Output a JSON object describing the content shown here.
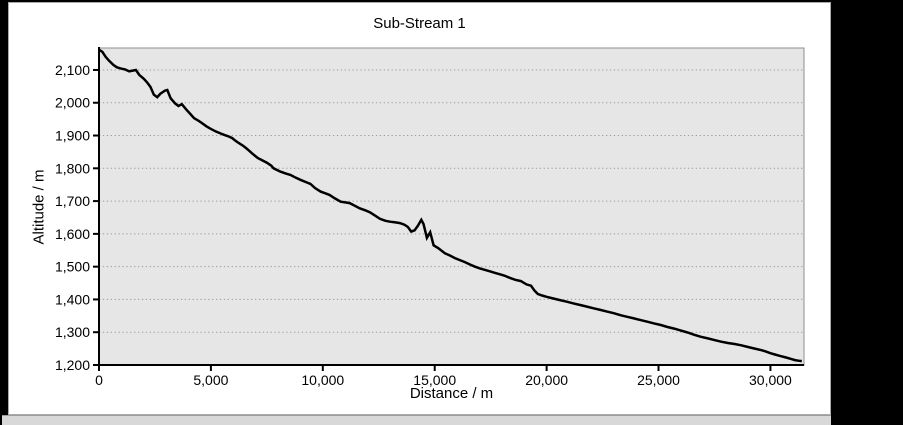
{
  "window": {
    "background_color": "#000000",
    "panel_color": "#ffffff",
    "bottom_strip_color": "#d8d8d8"
  },
  "chart_data": {
    "type": "line",
    "title": "Sub-Stream 1",
    "xlabel": "Distance / m",
    "ylabel": "Altitude / m",
    "xlim": [
      0,
      31500
    ],
    "ylim": [
      1200,
      2167
    ],
    "x_ticks": [
      0,
      5000,
      10000,
      15000,
      20000,
      25000,
      30000
    ],
    "x_tick_labels": [
      "0",
      "5,000",
      "10,000",
      "15,000",
      "20,000",
      "25,000",
      "30,000"
    ],
    "y_ticks": [
      1200,
      1300,
      1400,
      1500,
      1600,
      1700,
      1800,
      1900,
      2000,
      2100
    ],
    "y_tick_labels": [
      "1,200",
      "1,300",
      "1,400",
      "1,500",
      "1,600",
      "1,700",
      "1,800",
      "1,900",
      "2,000",
      "2,100"
    ],
    "grid": "horizontal-dotted",
    "legend": "none",
    "plot_bg_color": "#e6e6e6",
    "grid_color": "#9c9c9c",
    "axis_color": "#000000",
    "border_color": "#8f8f8f",
    "series": [
      {
        "name": "Sub-Stream 1",
        "color": "#000000",
        "points": [
          [
            0,
            2162
          ],
          [
            150,
            2155
          ],
          [
            300,
            2140
          ],
          [
            450,
            2128
          ],
          [
            650,
            2115
          ],
          [
            800,
            2108
          ],
          [
            1000,
            2104
          ],
          [
            1150,
            2102
          ],
          [
            1350,
            2096
          ],
          [
            1500,
            2098
          ],
          [
            1650,
            2100
          ],
          [
            1800,
            2085
          ],
          [
            2000,
            2073
          ],
          [
            2150,
            2062
          ],
          [
            2300,
            2048
          ],
          [
            2450,
            2025
          ],
          [
            2600,
            2017
          ],
          [
            2750,
            2028
          ],
          [
            2950,
            2037
          ],
          [
            3050,
            2039
          ],
          [
            3200,
            2014
          ],
          [
            3400,
            1998
          ],
          [
            3550,
            1990
          ],
          [
            3700,
            1996
          ],
          [
            3900,
            1979
          ],
          [
            4100,
            1964
          ],
          [
            4250,
            1953
          ],
          [
            4450,
            1945
          ],
          [
            4600,
            1938
          ],
          [
            4800,
            1928
          ],
          [
            4950,
            1922
          ],
          [
            5200,
            1913
          ],
          [
            5450,
            1906
          ],
          [
            5600,
            1902
          ],
          [
            5800,
            1897
          ],
          [
            5950,
            1892
          ],
          [
            6100,
            1884
          ],
          [
            6250,
            1877
          ],
          [
            6450,
            1868
          ],
          [
            6600,
            1860
          ],
          [
            6850,
            1845
          ],
          [
            7100,
            1831
          ],
          [
            7300,
            1824
          ],
          [
            7500,
            1817
          ],
          [
            7700,
            1808
          ],
          [
            7800,
            1800
          ],
          [
            8100,
            1790
          ],
          [
            8350,
            1784
          ],
          [
            8550,
            1780
          ],
          [
            8800,
            1771
          ],
          [
            9000,
            1765
          ],
          [
            9250,
            1758
          ],
          [
            9450,
            1752
          ],
          [
            9650,
            1740
          ],
          [
            9900,
            1729
          ],
          [
            10100,
            1724
          ],
          [
            10300,
            1719
          ],
          [
            10550,
            1708
          ],
          [
            10800,
            1698
          ],
          [
            11000,
            1696
          ],
          [
            11200,
            1694
          ],
          [
            11450,
            1685
          ],
          [
            11650,
            1678
          ],
          [
            11900,
            1672
          ],
          [
            12100,
            1666
          ],
          [
            12350,
            1655
          ],
          [
            12550,
            1646
          ],
          [
            12800,
            1640
          ],
          [
            13000,
            1637
          ],
          [
            13250,
            1635
          ],
          [
            13450,
            1633
          ],
          [
            13650,
            1628
          ],
          [
            13800,
            1621
          ],
          [
            13950,
            1607
          ],
          [
            14100,
            1611
          ],
          [
            14250,
            1625
          ],
          [
            14400,
            1643
          ],
          [
            14500,
            1630
          ],
          [
            14650,
            1588
          ],
          [
            14800,
            1605
          ],
          [
            14950,
            1565
          ],
          [
            15150,
            1557
          ],
          [
            15450,
            1541
          ],
          [
            15700,
            1533
          ],
          [
            15900,
            1526
          ],
          [
            16150,
            1519
          ],
          [
            16350,
            1514
          ],
          [
            16600,
            1506
          ],
          [
            16800,
            1500
          ],
          [
            17000,
            1495
          ],
          [
            17250,
            1490
          ],
          [
            17500,
            1485
          ],
          [
            17700,
            1481
          ],
          [
            17900,
            1477
          ],
          [
            18100,
            1473
          ],
          [
            18350,
            1466
          ],
          [
            18600,
            1460
          ],
          [
            18850,
            1456
          ],
          [
            19100,
            1446
          ],
          [
            19300,
            1442
          ],
          [
            19450,
            1428
          ],
          [
            19600,
            1417
          ],
          [
            19800,
            1412
          ],
          [
            20000,
            1408
          ],
          [
            20300,
            1403
          ],
          [
            20600,
            1398
          ],
          [
            20900,
            1393
          ],
          [
            21200,
            1388
          ],
          [
            21500,
            1383
          ],
          [
            21800,
            1378
          ],
          [
            22100,
            1373
          ],
          [
            22400,
            1368
          ],
          [
            22700,
            1363
          ],
          [
            23000,
            1358
          ],
          [
            23300,
            1352
          ],
          [
            23600,
            1347
          ],
          [
            23900,
            1342
          ],
          [
            24200,
            1337
          ],
          [
            24500,
            1332
          ],
          [
            24800,
            1327
          ],
          [
            25100,
            1322
          ],
          [
            25400,
            1316
          ],
          [
            25700,
            1311
          ],
          [
            26000,
            1305
          ],
          [
            26300,
            1299
          ],
          [
            26600,
            1292
          ],
          [
            26900,
            1286
          ],
          [
            27200,
            1281
          ],
          [
            27500,
            1276
          ],
          [
            27800,
            1271
          ],
          [
            28100,
            1267
          ],
          [
            28400,
            1264
          ],
          [
            28700,
            1260
          ],
          [
            29000,
            1255
          ],
          [
            29300,
            1250
          ],
          [
            29600,
            1245
          ],
          [
            29800,
            1241
          ],
          [
            30000,
            1236
          ],
          [
            30200,
            1232
          ],
          [
            30450,
            1227
          ],
          [
            30700,
            1223
          ],
          [
            30900,
            1219
          ],
          [
            31100,
            1215
          ],
          [
            31250,
            1213
          ],
          [
            31400,
            1212
          ]
        ]
      }
    ]
  }
}
